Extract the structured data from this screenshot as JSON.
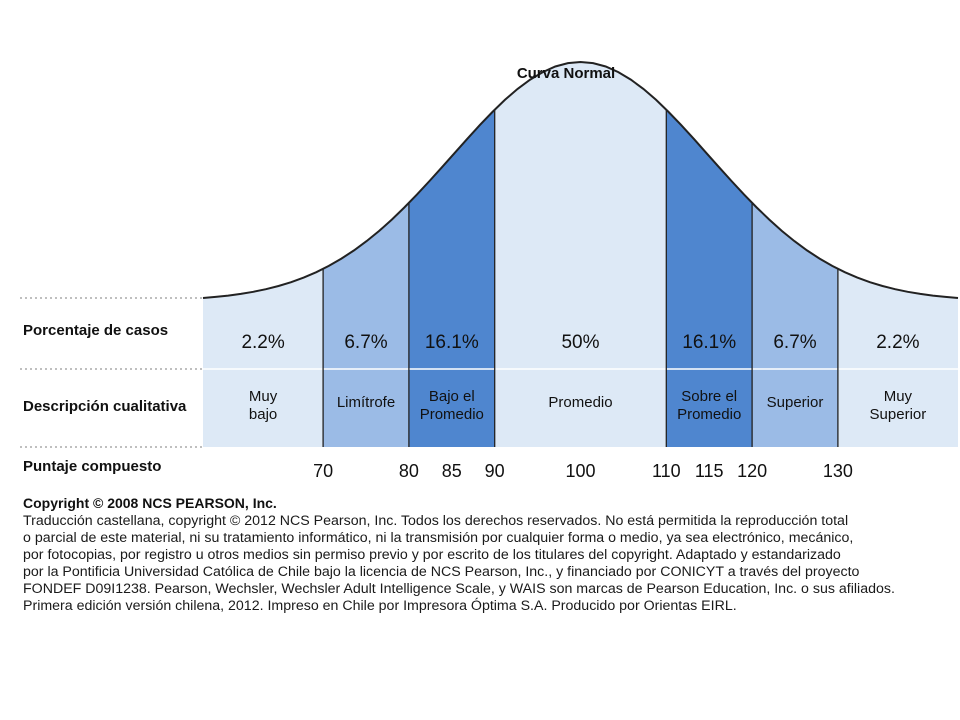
{
  "title": "Curva Normal",
  "row_labels": {
    "percentage": "Porcentaje de casos",
    "description": "Descripción cualitativa",
    "scores": "Puntaje compuesto"
  },
  "chart_data": {
    "type": "area",
    "title": "Curva Normal",
    "distribution": {
      "mean": 100,
      "sd": 15
    },
    "xlim": [
      56,
      144
    ],
    "segments": [
      {
        "from": 56,
        "to": 70,
        "percent": "2.2%",
        "label": [
          "Muy",
          "bajo"
        ],
        "shade": "light"
      },
      {
        "from": 70,
        "to": 80,
        "percent": "6.7%",
        "label": [
          "Limítrofe"
        ],
        "shade": "mid"
      },
      {
        "from": 80,
        "to": 90,
        "percent": "16.1%",
        "label": [
          "Bajo el",
          "Promedio"
        ],
        "shade": "dark"
      },
      {
        "from": 90,
        "to": 110,
        "percent": "50%",
        "label": [
          "Promedio"
        ],
        "shade": "light"
      },
      {
        "from": 110,
        "to": 120,
        "percent": "16.1%",
        "label": [
          "Sobre el",
          "Promedio"
        ],
        "shade": "dark"
      },
      {
        "from": 120,
        "to": 130,
        "percent": "6.7%",
        "label": [
          "Superior"
        ],
        "shade": "mid"
      },
      {
        "from": 130,
        "to": 144,
        "percent": "2.2%",
        "label": [
          "Muy",
          "Superior"
        ],
        "shade": "light"
      }
    ],
    "tick_labels": [
      "70",
      "80",
      "85",
      "90",
      "100",
      "110",
      "115",
      "120",
      "130"
    ],
    "tick_values": [
      70,
      80,
      85,
      90,
      100,
      110,
      115,
      120,
      130
    ]
  },
  "colors": {
    "light": "#dde9f6",
    "mid": "#9bbbe6",
    "dark": "#4f86cf",
    "line": "#222222",
    "dotted": "#999999"
  },
  "copyright": {
    "title": "Copyright © 2008 NCS PEARSON, Inc.",
    "lines": [
      "Traducción castellana, copyright ©  2012 NCS Pearson, Inc. Todos los derechos reservados. No está permitida la reproducción total",
      "o parcial de este material, ni su tratamiento informático, ni la transmisión por cualquier forma o medio, ya sea electrónico, mecánico,",
      "por fotocopias, por registro u otros medios sin permiso previo y por escrito de los titulares del copyright. Adaptado y estandarizado",
      "por la Pontificia Universidad Católica de Chile bajo la licencia de NCS Pearson, Inc., y financiado por CONICYT a través del proyecto",
      "FONDEF D09I1238. Pearson, Wechsler, Wechsler Adult Intelligence Scale, y WAIS son marcas de Pearson Education, Inc. o sus afiliados.",
      "Primera edición versión chilena, 2012. Impreso en Chile por Impresora Óptima S.A. Producido por Orientas EIRL."
    ]
  }
}
